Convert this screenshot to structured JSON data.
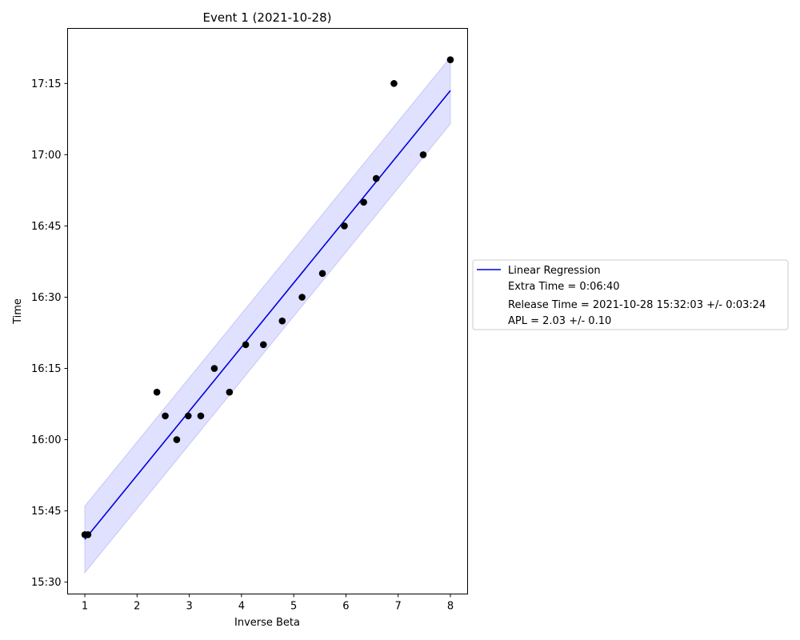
{
  "chart_data": {
    "type": "scatter",
    "title": "Event 1 (2021-10-28)",
    "xlabel": "Inverse Beta",
    "ylabel": "Time",
    "xlim": [
      0.67,
      8.33
    ],
    "ylim_minutes": [
      927.5,
      1046.6
    ],
    "x_ticks": [
      1,
      2,
      3,
      4,
      5,
      6,
      7,
      8
    ],
    "y_ticks": [
      {
        "label": "15:30",
        "minutes": 930
      },
      {
        "label": "15:45",
        "minutes": 945
      },
      {
        "label": "16:00",
        "minutes": 960
      },
      {
        "label": "16:15",
        "minutes": 975
      },
      {
        "label": "16:30",
        "minutes": 990
      },
      {
        "label": "16:45",
        "minutes": 1005
      },
      {
        "label": "17:00",
        "minutes": 1020
      },
      {
        "label": "17:15",
        "minutes": 1035
      }
    ],
    "points": [
      {
        "x": 1.0,
        "y": 940
      },
      {
        "x": 1.06,
        "y": 940
      },
      {
        "x": 2.38,
        "y": 970
      },
      {
        "x": 2.54,
        "y": 965
      },
      {
        "x": 2.76,
        "y": 960
      },
      {
        "x": 2.98,
        "y": 965
      },
      {
        "x": 3.22,
        "y": 965
      },
      {
        "x": 3.48,
        "y": 975
      },
      {
        "x": 3.77,
        "y": 970
      },
      {
        "x": 4.08,
        "y": 980
      },
      {
        "x": 4.42,
        "y": 980
      },
      {
        "x": 4.78,
        "y": 985
      },
      {
        "x": 5.16,
        "y": 990
      },
      {
        "x": 5.55,
        "y": 995
      },
      {
        "x": 5.97,
        "y": 1005
      },
      {
        "x": 6.34,
        "y": 1010
      },
      {
        "x": 6.58,
        "y": 1015
      },
      {
        "x": 6.92,
        "y": 1035
      },
      {
        "x": 7.48,
        "y": 1020
      },
      {
        "x": 8.0,
        "y": 1040
      }
    ],
    "regression": {
      "name": "Linear Regression",
      "x_range": [
        1.0,
        8.0
      ],
      "y_start": 939.0,
      "y_end": 1033.5,
      "band_halfwidth_minutes": 7.0
    },
    "legend_lines": [
      "Linear Regression",
      "Extra Time = 0:06:40",
      "Release Time = 2021-10-28 15:32:03 +/- 0:03:24",
      "APL = 2.03 +/- 0.10"
    ],
    "colors": {
      "line": "#0000dd",
      "band": "#e0e0ff",
      "band_edge": "#c8c8f5",
      "points": "#000000"
    }
  }
}
